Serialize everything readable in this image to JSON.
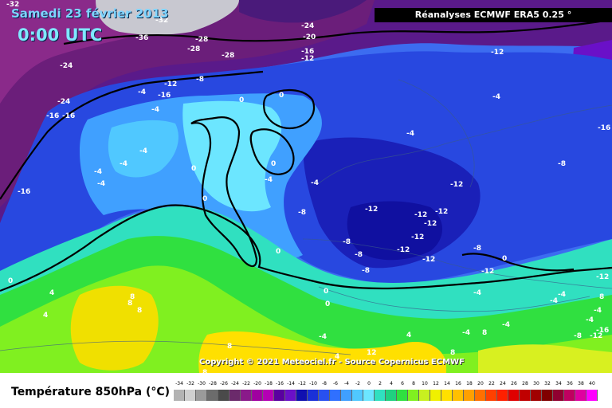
{
  "header": {
    "date": "Samedi 23 février 2013",
    "time": "0:00 UTC",
    "source": "Réanalyses ECMWF ERA5 0.25 °"
  },
  "copyright": "Copyright © 2021 Meteociel.fr - Source Copernicus ECMWF",
  "legend": {
    "title": "Température 850hPa (°C)",
    "ticks": [
      "-34",
      "-32",
      "-30",
      "-28",
      "-26",
      "-24",
      "-22",
      "-20",
      "-18",
      "-16",
      "-14",
      "-12",
      "-10",
      "-8",
      "-6",
      "-4",
      "-2",
      "0",
      "2",
      "4",
      "6",
      "8",
      "10",
      "12",
      "14",
      "16",
      "18",
      "20",
      "22",
      "24",
      "26",
      "28",
      "30",
      "32",
      "34",
      "36",
      "38",
      "40"
    ],
    "colors": [
      "#b3b3b3",
      "#cfcfcf",
      "#9a9a9a",
      "#6c6c6c",
      "#4a4a4a",
      "#6b2a6b",
      "#8a1a8a",
      "#a000a0",
      "#b400b4",
      "#5a00a0",
      "#6a10c8",
      "#1010b0",
      "#1a30d8",
      "#2850f0",
      "#3070ff",
      "#40a0ff",
      "#50c8ff",
      "#6ce6ff",
      "#30e0c0",
      "#20d080",
      "#30e040",
      "#80f020",
      "#c8f020",
      "#f0f000",
      "#ffe000",
      "#ffc000",
      "#ffa000",
      "#ff7000",
      "#ff4000",
      "#ff2000",
      "#e00000",
      "#c00000",
      "#a00000",
      "#800000",
      "#900030",
      "#c00060",
      "#e000a0",
      "#ff00ff"
    ]
  },
  "isotherm_labels": [
    {
      "text": "-32"
    },
    {
      "text": "-32"
    },
    {
      "text": "-36"
    },
    {
      "text": "-28"
    },
    {
      "text": "-28"
    },
    {
      "text": "-28"
    },
    {
      "text": "-24"
    },
    {
      "text": "-20"
    },
    {
      "text": "-16"
    },
    {
      "text": "-12"
    },
    {
      "text": "-24"
    },
    {
      "text": "-8"
    },
    {
      "text": "-12"
    },
    {
      "text": "-12"
    },
    {
      "text": "-4"
    },
    {
      "text": "-16"
    },
    {
      "text": "-24"
    },
    {
      "text": "-4"
    },
    {
      "text": "-16"
    },
    {
      "text": "-16"
    },
    {
      "text": "0"
    },
    {
      "text": "0"
    },
    {
      "text": "-4"
    },
    {
      "text": "-16"
    },
    {
      "text": "-4"
    },
    {
      "text": "-4"
    },
    {
      "text": "-4"
    },
    {
      "text": "-4"
    },
    {
      "text": "-4"
    },
    {
      "text": "0"
    },
    {
      "text": "0"
    },
    {
      "text": "-4"
    },
    {
      "text": "-8"
    },
    {
      "text": "-12"
    },
    {
      "text": "-16"
    },
    {
      "text": "-4"
    },
    {
      "text": "0"
    },
    {
      "text": "-8"
    },
    {
      "text": "-12"
    },
    {
      "text": "-12"
    },
    {
      "text": "-12"
    },
    {
      "text": "-12"
    },
    {
      "text": "-8"
    },
    {
      "text": "-12"
    },
    {
      "text": "-8"
    },
    {
      "text": "-12"
    },
    {
      "text": "-12"
    },
    {
      "text": "-8"
    },
    {
      "text": "-8"
    },
    {
      "text": "-12"
    },
    {
      "text": "0"
    },
    {
      "text": "0"
    },
    {
      "text": "0"
    },
    {
      "text": "-4"
    },
    {
      "text": "8"
    },
    {
      "text": "8"
    },
    {
      "text": "8"
    },
    {
      "text": "4"
    },
    {
      "text": "4"
    },
    {
      "text": "8"
    },
    {
      "text": "0"
    },
    {
      "text": "-4"
    },
    {
      "text": "4"
    },
    {
      "text": "12"
    },
    {
      "text": "8"
    },
    {
      "text": "-8"
    },
    {
      "text": "-12"
    },
    {
      "text": "-4"
    },
    {
      "text": "-4"
    },
    {
      "text": "-4"
    },
    {
      "text": "8"
    },
    {
      "text": "-4"
    },
    {
      "text": "0"
    },
    {
      "text": "4"
    },
    {
      "text": "-4"
    },
    {
      "text": "-4"
    },
    {
      "text": "-12"
    },
    {
      "text": "8"
    },
    {
      "text": "-16"
    },
    {
      "text": "8"
    }
  ]
}
